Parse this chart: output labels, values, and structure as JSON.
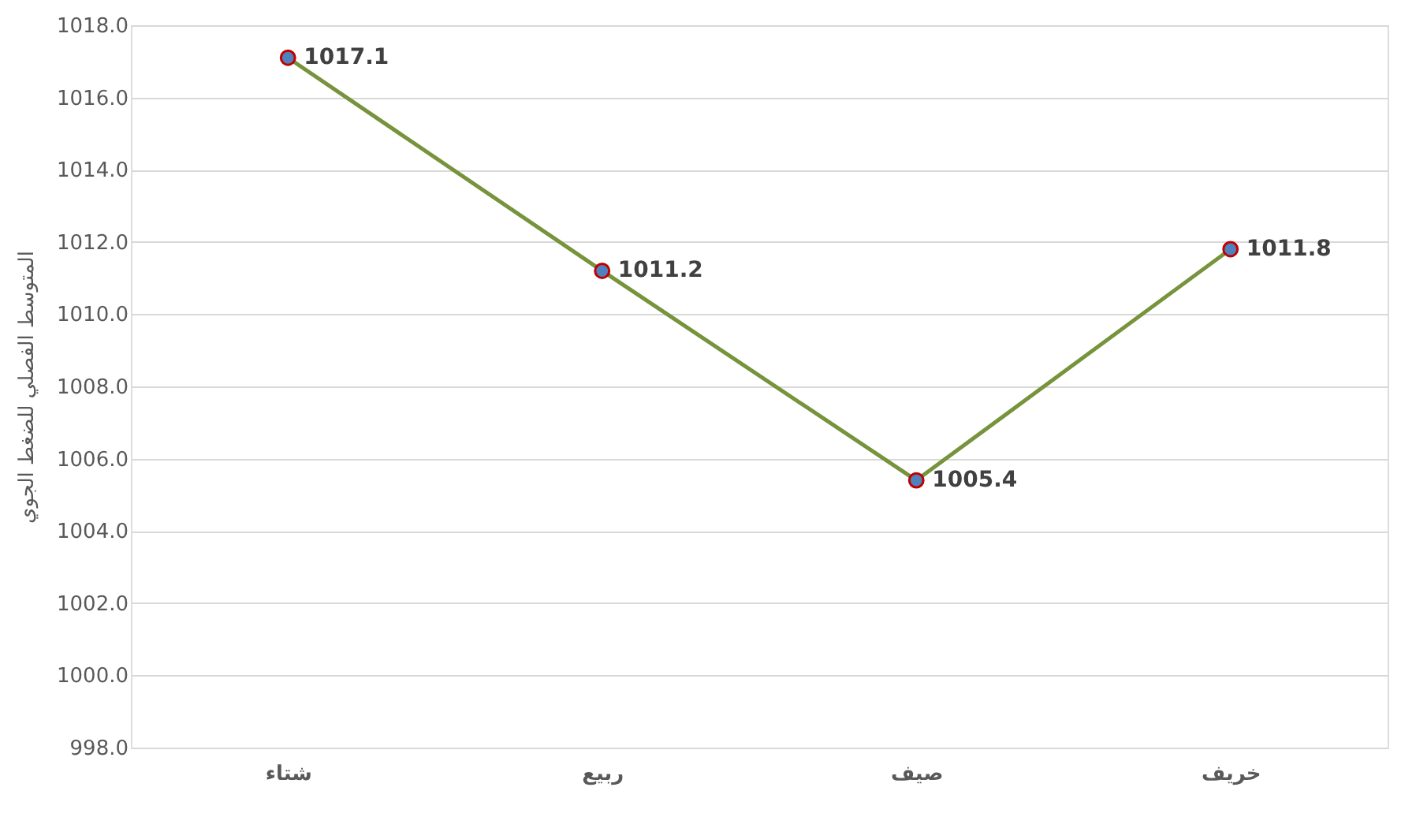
{
  "chart_data": {
    "type": "line",
    "ylabel": "المتوسط الفصلي للضغط الجوي",
    "categories": [
      "شتاء",
      "ربيع",
      "صيف",
      "خريف"
    ],
    "series": [
      {
        "color": "#77933c",
        "values": [
          1017.1,
          1011.2,
          1005.4,
          1011.8
        ]
      }
    ],
    "ylim": [
      998,
      1018
    ],
    "yticks": [
      {
        "value": 998,
        "label": "998.0"
      },
      {
        "value": 1000,
        "label": "1000.0"
      },
      {
        "value": 1002,
        "label": "1002.0"
      },
      {
        "value": 1004,
        "label": "1004.0"
      },
      {
        "value": 1006,
        "label": "1006.0"
      },
      {
        "value": 1008,
        "label": "1008.0"
      },
      {
        "value": 1010,
        "label": "1010.0"
      },
      {
        "value": 1012,
        "label": "1012.0"
      },
      {
        "value": 1014,
        "label": "1014.0"
      },
      {
        "value": 1016,
        "label": "1016.0"
      },
      {
        "value": 1018,
        "label": "1018.0"
      }
    ],
    "grid": "y",
    "marker": "circle",
    "line_style": "solid",
    "data_labels": true
  }
}
